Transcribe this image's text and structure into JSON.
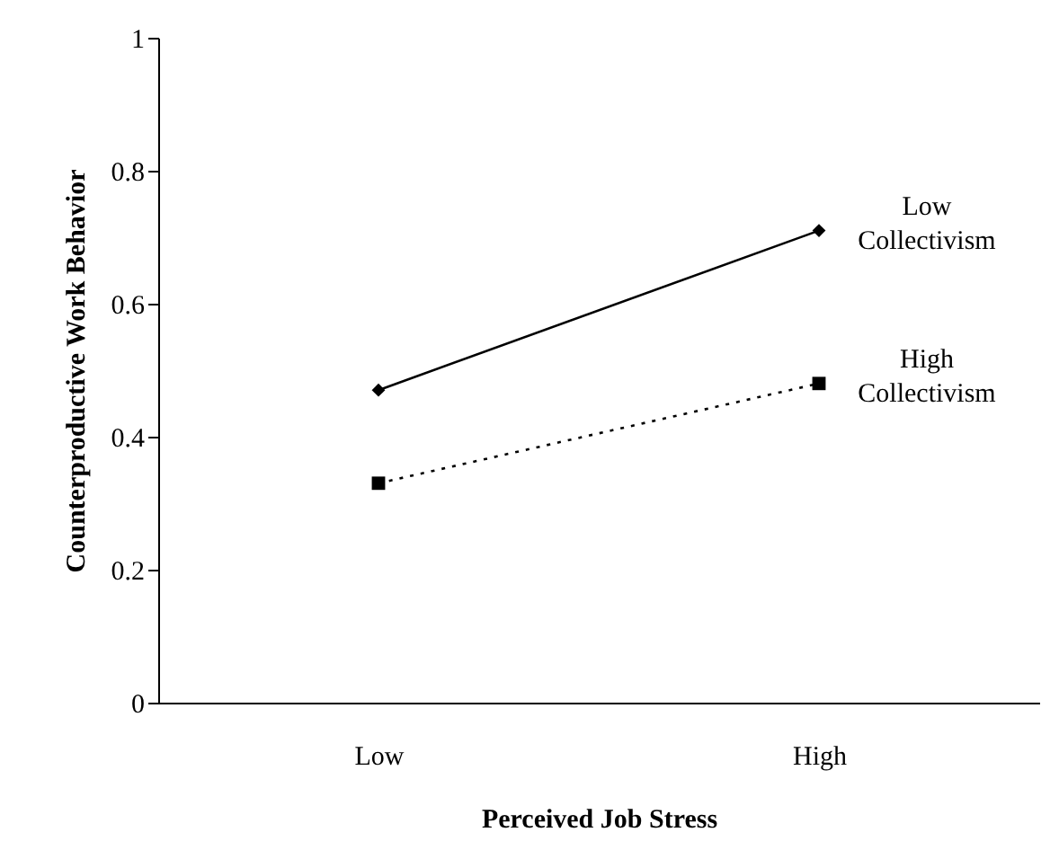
{
  "chart_data": {
    "type": "line",
    "xlabel": "Perceived Job Stress",
    "ylabel": "Counterproductive Work Behavior",
    "categories": [
      "Low",
      "High"
    ],
    "series": [
      {
        "name": "Low Collectivism",
        "color": "#000000",
        "marker": "diamond",
        "line_style": "solid",
        "values": [
          0.47,
          0.71
        ]
      },
      {
        "name": "High Collectivism",
        "color": "#000000",
        "marker": "square",
        "line_style": "dotted",
        "values": [
          0.33,
          0.48
        ]
      }
    ],
    "ylim": [
      0,
      1
    ],
    "yticks": [
      0,
      0.2,
      0.4,
      0.6,
      0.8,
      1
    ],
    "grid": false,
    "legend": false
  }
}
